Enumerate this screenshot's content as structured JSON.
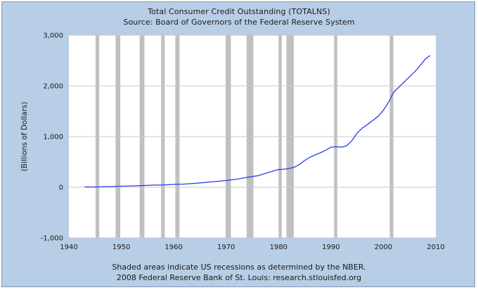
{
  "chart_data": {
    "type": "line",
    "title": "Total Consumer Credit Outstanding (TOTALNS)",
    "subtitle": "Source: Board of Governors of the Federal Reserve System",
    "xlabel": "",
    "ylabel": "(Billions of Dollars)",
    "xlim": [
      1940,
      2010
    ],
    "ylim": [
      -1000,
      3000
    ],
    "x_ticks": [
      1940,
      1950,
      1960,
      1970,
      1980,
      1990,
      2000,
      2010
    ],
    "y_ticks": [
      -1000,
      0,
      1000,
      2000,
      3000
    ],
    "y_tick_labels": [
      "-1,000",
      "0",
      "1,000",
      "2,000",
      "3,000"
    ],
    "grid": true,
    "line_color": "#2b3cf0",
    "recession_color": "#c0c0c0",
    "recessions": [
      [
        1945.1,
        1945.8
      ],
      [
        1948.9,
        1949.8
      ],
      [
        1953.5,
        1954.4
      ],
      [
        1957.6,
        1958.3
      ],
      [
        1960.3,
        1961.1
      ],
      [
        1969.9,
        1970.9
      ],
      [
        1973.9,
        1975.2
      ],
      [
        1980.0,
        1980.6
      ],
      [
        1981.5,
        1982.9
      ],
      [
        1990.6,
        1991.2
      ],
      [
        2001.2,
        2001.9
      ]
    ],
    "series": [
      {
        "x": [
          1943,
          1945,
          1946,
          1948,
          1950,
          1952,
          1954,
          1956,
          1958,
          1960,
          1962,
          1964,
          1966,
          1968,
          1970,
          1972,
          1974,
          1976,
          1978,
          1980,
          1981,
          1982,
          1983,
          1984,
          1985,
          1986,
          1987,
          1988,
          1989,
          1990,
          1991,
          1992,
          1993,
          1994,
          1995,
          1996,
          1997,
          1998,
          1999,
          2000,
          2001,
          2002,
          2003,
          2004,
          2005,
          2006,
          2007,
          2008,
          2008.9
        ],
        "values": [
          5,
          6,
          8,
          14,
          21,
          27,
          32,
          42,
          45,
          56,
          63,
          77,
          95,
          112,
          132,
          158,
          196,
          226,
          290,
          350,
          355,
          370,
          395,
          450,
          530,
          590,
          640,
          680,
          730,
          790,
          800,
          790,
          820,
          920,
          1070,
          1170,
          1240,
          1320,
          1400,
          1520,
          1680,
          1880,
          1980,
          2080,
          2180,
          2280,
          2400,
          2530,
          2600
        ]
      }
    ]
  },
  "footer": {
    "note": "Shaded areas indicate US recessions as determined by the NBER.",
    "credit": "2008 Federal Reserve Bank of St. Louis: research.stlouisfed.org"
  }
}
